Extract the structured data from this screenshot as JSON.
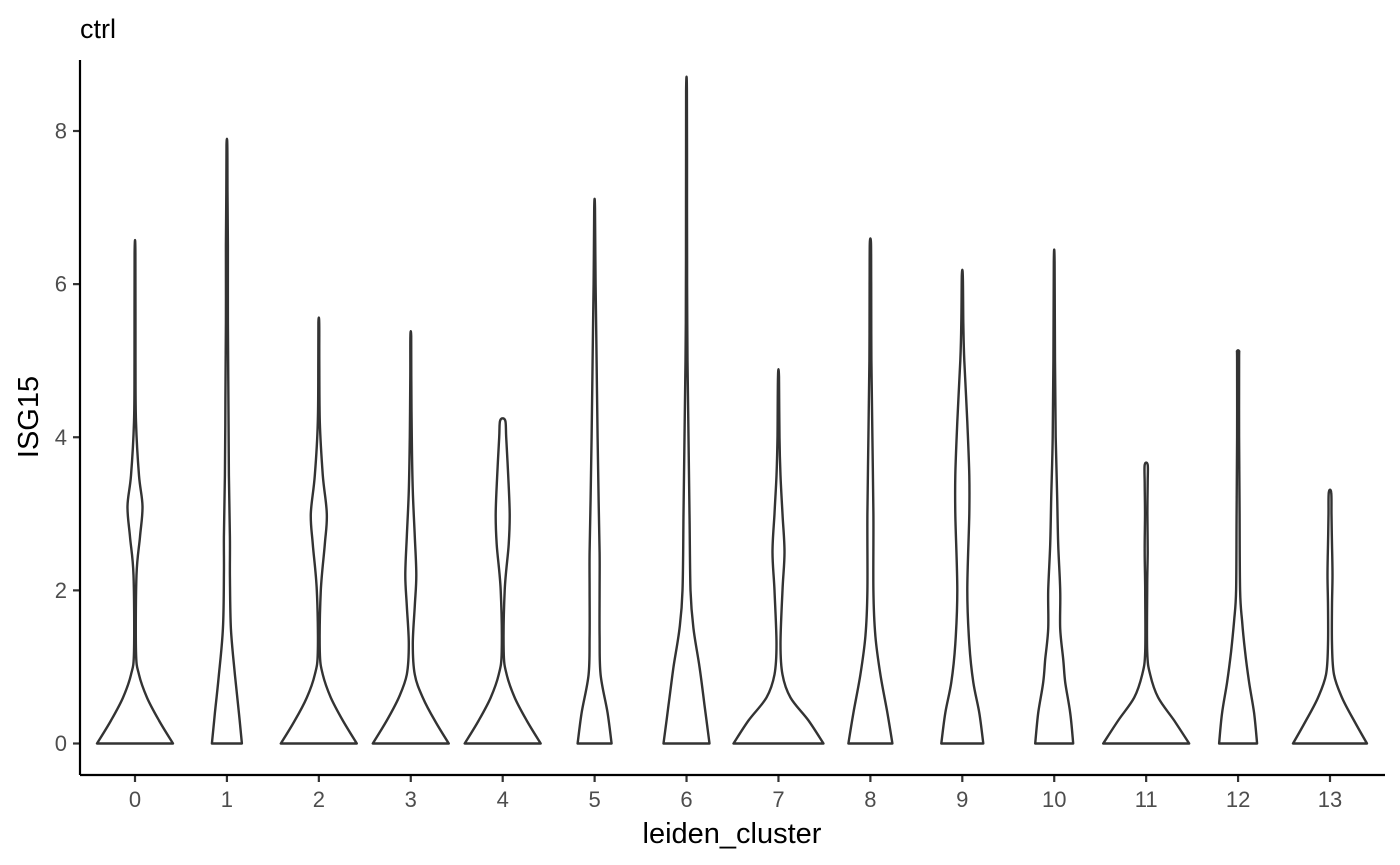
{
  "chart_data": {
    "type": "violin",
    "title": "ctrl",
    "xlabel": "leiden_cluster",
    "ylabel": "ISG15",
    "ylim": [
      -0.4,
      8.95
    ],
    "yticks": [
      0,
      2,
      4,
      6,
      8
    ],
    "grid": false,
    "legend": "none",
    "colors": {
      "outline": "#333333",
      "axis": "#000000",
      "tick_label": "#4d4d4d"
    },
    "categories": [
      "0",
      "1",
      "2",
      "3",
      "4",
      "5",
      "6",
      "7",
      "8",
      "9",
      "10",
      "11",
      "12",
      "13"
    ],
    "violins": [
      {
        "category": "0",
        "max": 6.4,
        "profile": [
          [
            0,
            0.38
          ],
          [
            0.3,
            0.24
          ],
          [
            0.6,
            0.12
          ],
          [
            0.9,
            0.04
          ],
          [
            1.2,
            0.01
          ],
          [
            2.2,
            0.015
          ],
          [
            2.7,
            0.05
          ],
          [
            3.1,
            0.075
          ],
          [
            3.5,
            0.04
          ],
          [
            4.2,
            0.01
          ],
          [
            5.0,
            0.005
          ],
          [
            6.4,
            0.004
          ]
        ]
      },
      {
        "category": "1",
        "max": 7.82,
        "profile": [
          [
            0,
            0.15
          ],
          [
            0.4,
            0.12
          ],
          [
            0.9,
            0.08
          ],
          [
            1.5,
            0.04
          ],
          [
            2.2,
            0.03
          ],
          [
            2.7,
            0.03
          ],
          [
            3.5,
            0.02
          ],
          [
            4.5,
            0.015
          ],
          [
            5.5,
            0.01
          ],
          [
            6.5,
            0.01
          ],
          [
            7.2,
            0.006
          ],
          [
            7.82,
            0.004
          ]
        ]
      },
      {
        "category": "2",
        "max": 5.5,
        "profile": [
          [
            0,
            0.38
          ],
          [
            0.3,
            0.24
          ],
          [
            0.6,
            0.12
          ],
          [
            0.9,
            0.04
          ],
          [
            1.2,
            0.01
          ],
          [
            2.0,
            0.02
          ],
          [
            2.6,
            0.06
          ],
          [
            3.0,
            0.08
          ],
          [
            3.5,
            0.04
          ],
          [
            4.2,
            0.01
          ],
          [
            5.0,
            0.005
          ],
          [
            5.5,
            0.004
          ]
        ]
      },
      {
        "category": "3",
        "max": 5.32,
        "profile": [
          [
            0,
            0.38
          ],
          [
            0.3,
            0.24
          ],
          [
            0.6,
            0.12
          ],
          [
            0.9,
            0.04
          ],
          [
            1.3,
            0.02
          ],
          [
            1.8,
            0.04
          ],
          [
            2.2,
            0.055
          ],
          [
            2.7,
            0.04
          ],
          [
            3.3,
            0.02
          ],
          [
            4.0,
            0.01
          ],
          [
            4.8,
            0.005
          ],
          [
            5.32,
            0.004
          ]
        ]
      },
      {
        "category": "4",
        "max": 4.22,
        "profile": [
          [
            0,
            0.38
          ],
          [
            0.3,
            0.24
          ],
          [
            0.6,
            0.12
          ],
          [
            0.9,
            0.04
          ],
          [
            1.2,
            0.01
          ],
          [
            2.0,
            0.02
          ],
          [
            2.6,
            0.06
          ],
          [
            3.0,
            0.07
          ],
          [
            3.5,
            0.055
          ],
          [
            4.0,
            0.035
          ],
          [
            4.22,
            0.025
          ]
        ]
      },
      {
        "category": "5",
        "max": 6.99,
        "profile": [
          [
            0,
            0.17
          ],
          [
            0.4,
            0.13
          ],
          [
            0.9,
            0.06
          ],
          [
            1.4,
            0.05
          ],
          [
            2.0,
            0.05
          ],
          [
            2.5,
            0.05
          ],
          [
            3.2,
            0.04
          ],
          [
            4.0,
            0.03
          ],
          [
            5.0,
            0.02
          ],
          [
            6.0,
            0.01
          ],
          [
            6.99,
            0.004
          ]
        ]
      },
      {
        "category": "6",
        "max": 8.52,
        "profile": [
          [
            0,
            0.23
          ],
          [
            0.5,
            0.18
          ],
          [
            1.0,
            0.13
          ],
          [
            1.5,
            0.07
          ],
          [
            2.0,
            0.04
          ],
          [
            3.0,
            0.03
          ],
          [
            4.0,
            0.02
          ],
          [
            5.0,
            0.01
          ],
          [
            6.0,
            0.006
          ],
          [
            7.0,
            0.005
          ],
          [
            8.52,
            0.004
          ]
        ]
      },
      {
        "category": "7",
        "max": 4.79,
        "profile": [
          [
            0,
            0.45
          ],
          [
            0.3,
            0.3
          ],
          [
            0.6,
            0.12
          ],
          [
            0.9,
            0.04
          ],
          [
            1.3,
            0.02
          ],
          [
            2.0,
            0.04
          ],
          [
            2.5,
            0.06
          ],
          [
            3.0,
            0.04
          ],
          [
            3.5,
            0.02
          ],
          [
            4.0,
            0.01
          ],
          [
            4.79,
            0.005
          ]
        ]
      },
      {
        "category": "8",
        "max": 6.53,
        "profile": [
          [
            0,
            0.22
          ],
          [
            0.4,
            0.17
          ],
          [
            0.9,
            0.1
          ],
          [
            1.4,
            0.05
          ],
          [
            2.0,
            0.03
          ],
          [
            3.0,
            0.03
          ],
          [
            4.0,
            0.02
          ],
          [
            5.0,
            0.01
          ],
          [
            6.0,
            0.008
          ],
          [
            6.53,
            0.006
          ]
        ]
      },
      {
        "category": "9",
        "max": 6.11,
        "profile": [
          [
            0,
            0.21
          ],
          [
            0.4,
            0.17
          ],
          [
            0.8,
            0.11
          ],
          [
            1.3,
            0.07
          ],
          [
            2.0,
            0.05
          ],
          [
            3.0,
            0.07
          ],
          [
            3.5,
            0.07
          ],
          [
            4.2,
            0.05
          ],
          [
            5.0,
            0.02
          ],
          [
            5.5,
            0.01
          ],
          [
            6.11,
            0.005
          ]
        ]
      },
      {
        "category": "10",
        "max": 6.29,
        "profile": [
          [
            0,
            0.19
          ],
          [
            0.4,
            0.16
          ],
          [
            0.8,
            0.11
          ],
          [
            1.1,
            0.09
          ],
          [
            1.5,
            0.06
          ],
          [
            2.0,
            0.06
          ],
          [
            2.6,
            0.04
          ],
          [
            3.2,
            0.03
          ],
          [
            4.0,
            0.015
          ],
          [
            5.0,
            0.008
          ],
          [
            6.29,
            0.004
          ]
        ]
      },
      {
        "category": "11",
        "max": 3.64,
        "profile": [
          [
            0,
            0.43
          ],
          [
            0.3,
            0.28
          ],
          [
            0.6,
            0.12
          ],
          [
            0.9,
            0.04
          ],
          [
            1.2,
            0.01
          ],
          [
            2.0,
            0.01
          ],
          [
            2.5,
            0.015
          ],
          [
            3.0,
            0.012
          ],
          [
            3.4,
            0.015
          ],
          [
            3.64,
            0.015
          ]
        ]
      },
      {
        "category": "12",
        "max": 5.12,
        "profile": [
          [
            0,
            0.19
          ],
          [
            0.4,
            0.16
          ],
          [
            0.8,
            0.11
          ],
          [
            1.2,
            0.07
          ],
          [
            1.6,
            0.04
          ],
          [
            2.0,
            0.02
          ],
          [
            3.0,
            0.015
          ],
          [
            4.0,
            0.01
          ],
          [
            5.0,
            0.01
          ],
          [
            5.12,
            0.01
          ]
        ]
      },
      {
        "category": "13",
        "max": 3.28,
        "profile": [
          [
            0,
            0.37
          ],
          [
            0.3,
            0.24
          ],
          [
            0.6,
            0.12
          ],
          [
            0.9,
            0.04
          ],
          [
            1.3,
            0.02
          ],
          [
            1.8,
            0.02
          ],
          [
            2.2,
            0.025
          ],
          [
            2.6,
            0.02
          ],
          [
            3.0,
            0.015
          ],
          [
            3.28,
            0.012
          ]
        ]
      }
    ]
  }
}
